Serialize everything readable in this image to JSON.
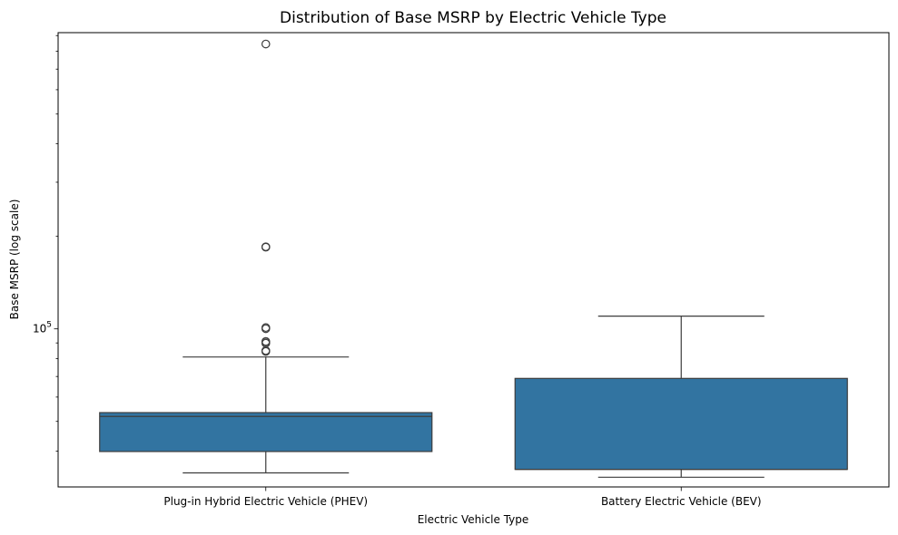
{
  "chart_data": {
    "type": "box",
    "title": "Distribution of Base MSRP by Electric Vehicle Type",
    "xlabel": "Electric Vehicle Type",
    "ylabel": "Base MSRP (log scale)",
    "yscale": "log",
    "ylim": [
      30600,
      920000
    ],
    "y_major_ticks": [
      {
        "value": 100000,
        "base": "10",
        "exp": "5"
      }
    ],
    "y_minor_ticks": [
      40000,
      50000,
      60000,
      70000,
      80000,
      90000,
      200000,
      300000,
      400000,
      500000,
      600000,
      700000,
      800000,
      900000
    ],
    "categories": [
      "Plug-in Hybrid Electric Vehicle (PHEV)",
      "Battery Electric Vehicle (BEV)"
    ],
    "boxes": [
      {
        "category": "Plug-in Hybrid Electric Vehicle (PHEV)",
        "whisker_low": 34000,
        "q1": 39900,
        "median": 51900,
        "q3": 53400,
        "whisker_high": 81000,
        "outliers": [
          84400,
          85000,
          89800,
          90700,
          91000,
          100100,
          101000,
          184400,
          185000,
          845000
        ]
      },
      {
        "category": "Battery Electric Vehicle (BEV)",
        "whisker_low": 32900,
        "q1": 34900,
        "median": 34900,
        "q3": 69000,
        "whisker_high": 110000,
        "outliers": []
      }
    ],
    "box_color": "#3274a1",
    "line_color": "#3d3d3d",
    "grid": false,
    "legend": "none"
  }
}
